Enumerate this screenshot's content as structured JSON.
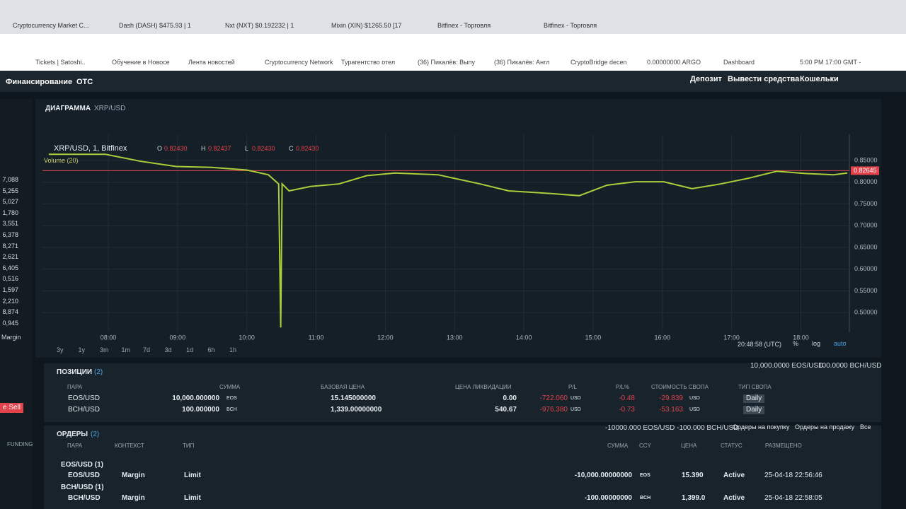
{
  "browser": {
    "tabs": [
      "Cryptocurrency Market C...",
      "Dash (DASH) $475.93 | 1",
      "Nxt (NXT) $0.192232 | 1",
      "Mixin (XIN) $1265.50 [17",
      "Bitfinex - Торговля",
      "Bitfinex - Торговля"
    ],
    "bookmarks": [
      "Tickets | Satoshi..",
      "Обучение в Новосе",
      "Лента новостей",
      "Cryptocurrency Network",
      "Турагентство отел",
      "(36) Пикалёв: Выпу",
      "(36) Пикалёв: Англ",
      "CryptoBridge decen",
      "0.00000000 ARGO",
      "Dashboard",
      "5:00 PM 17:00 GMT -"
    ]
  },
  "nav": {
    "left": [
      "Финансирование",
      "OTC"
    ],
    "right": [
      "Депозит",
      "Вывести средства",
      "Кошельки"
    ]
  },
  "sidebar": {
    "tickers": [
      "7,088",
      "5,255",
      "5,027",
      "1,780",
      "3,551",
      "6,378",
      "8,271",
      "2,621",
      "6,405",
      "0,516",
      "1,597",
      "2,210",
      "8,874",
      "0,945"
    ],
    "margin": "Margin",
    "sell": "e Sell",
    "funding": "FUNDING"
  },
  "chart_data": {
    "type": "line",
    "title": "ДИАГРАММА",
    "pair": "XRP/USD",
    "symbol": "XRP/USD, 1, Bitfinex",
    "ohlc": [
      {
        "label": "O",
        "value": "0.82430"
      },
      {
        "label": "H",
        "value": "0.82437"
      },
      {
        "label": "L",
        "value": "0.82430"
      },
      {
        "label": "C",
        "value": "0.82430"
      }
    ],
    "volume_label": "Volume (20)",
    "x": [
      7.14,
      7.96,
      8.47,
      8.98,
      9.49,
      10.0,
      10.31,
      10.46,
      10.49,
      10.51,
      10.61,
      10.92,
      11.33,
      11.73,
      12.14,
      12.76,
      13.37,
      13.78,
      14.39,
      14.8,
      15.2,
      15.61,
      16.02,
      16.43,
      16.84,
      17.24,
      17.65,
      18.06,
      18.47,
      18.67
    ],
    "values": [
      0.864,
      0.864,
      0.848,
      0.836,
      0.834,
      0.828,
      0.817,
      0.796,
      0.466,
      0.796,
      0.78,
      0.79,
      0.796,
      0.815,
      0.821,
      0.817,
      0.796,
      0.78,
      0.774,
      0.769,
      0.793,
      0.801,
      0.801,
      0.785,
      0.796,
      0.809,
      0.825,
      0.82,
      0.817,
      0.821
    ],
    "color": "#a9cf3a",
    "xlim": [
      7.05,
      18.7
    ],
    "ylim": [
      0.455,
      0.91
    ],
    "xticks": [
      {
        "value": 8,
        "label": "08:00"
      },
      {
        "value": 9,
        "label": "09:00"
      },
      {
        "value": 10,
        "label": "10:00"
      },
      {
        "value": 11,
        "label": "11:00"
      },
      {
        "value": 12,
        "label": "12:00"
      },
      {
        "value": 13,
        "label": "13:00"
      },
      {
        "value": 14,
        "label": "14:00"
      },
      {
        "value": 15,
        "label": "15:00"
      },
      {
        "value": 16,
        "label": "16:00"
      },
      {
        "value": 17,
        "label": "17:00"
      },
      {
        "value": 18,
        "label": "18:00"
      }
    ],
    "yticks": [
      {
        "value": 0.85,
        "label": "0.85000"
      },
      {
        "value": 0.8,
        "label": "0.80000"
      },
      {
        "value": 0.75,
        "label": "0.75000"
      },
      {
        "value": 0.7,
        "label": "0.70000"
      },
      {
        "value": 0.65,
        "label": "0.65000"
      },
      {
        "value": 0.6,
        "label": "0.60000"
      },
      {
        "value": 0.55,
        "label": "0.55000"
      },
      {
        "value": 0.5,
        "label": "0.50000"
      }
    ],
    "price_line": {
      "value": 0.82645,
      "label": "0.82645"
    },
    "price_color": "#e2434b",
    "grid": true,
    "timeframes": [
      "3y",
      "1y",
      "3m",
      "1m",
      "7d",
      "3d",
      "1d",
      "6h",
      "1h"
    ],
    "clock": "20:48:58 (UTC)",
    "scale_options": [
      "%",
      "log",
      "auto"
    ]
  },
  "positions": {
    "title": "ПОЗИЦИИ",
    "count": "(2)",
    "summary": [
      "10,000.0000 EOS/USD",
      "100.0000 BCH/USD"
    ],
    "headers": [
      "ПАРА",
      "СУММА",
      "БАЗОВАЯ ЦЕНА",
      "ЦЕНА ЛИКВИДАЦИИ",
      "P/L",
      "P/L%",
      "СТОИМОСТЬ СВОПА",
      "ТИП СВОПА"
    ],
    "rows": [
      [
        "EOS/USD",
        "10,000.000000",
        "EOS",
        "15.145000000",
        "0.00",
        "-722.060",
        "USD",
        "-0.48",
        "-29.839",
        "USD",
        "Daily"
      ],
      [
        "BCH/USD",
        "100.000000",
        "BCH",
        "1,339.00000000",
        "540.67",
        "-976.380",
        "USD",
        "-0.73",
        "-53.163",
        "USD",
        "Daily"
      ]
    ]
  },
  "orders": {
    "title": "ОРДЕРЫ",
    "count": "(2)",
    "summary": "-10000.000 EOS/USD -100.000 BCH/USD",
    "filters": [
      "Ордеры на покупку",
      "Ордеры на продажу",
      "Все"
    ],
    "headers": [
      "ПАРА",
      "КОНТЕКСТ",
      "ТИП",
      "СУММА",
      "CCY",
      "ЦЕНА",
      "СТАТУС",
      "РАЗМЕЩЕНО"
    ],
    "rows": [
      {
        "group": "EOS/USD (1)",
        "cells": [
          "EOS/USD",
          "Margin",
          "Limit",
          "-10,000.00000000",
          "EOS",
          "15.390",
          "Active",
          "25-04-18 22:56:46"
        ]
      },
      {
        "group": "BCH/USD (1)",
        "cells": [
          "BCH/USD",
          "Margin",
          "Limit",
          "-100.00000000",
          "BCH",
          "1,399.0",
          "Active",
          "25-04-18 22:58:05"
        ]
      }
    ]
  }
}
